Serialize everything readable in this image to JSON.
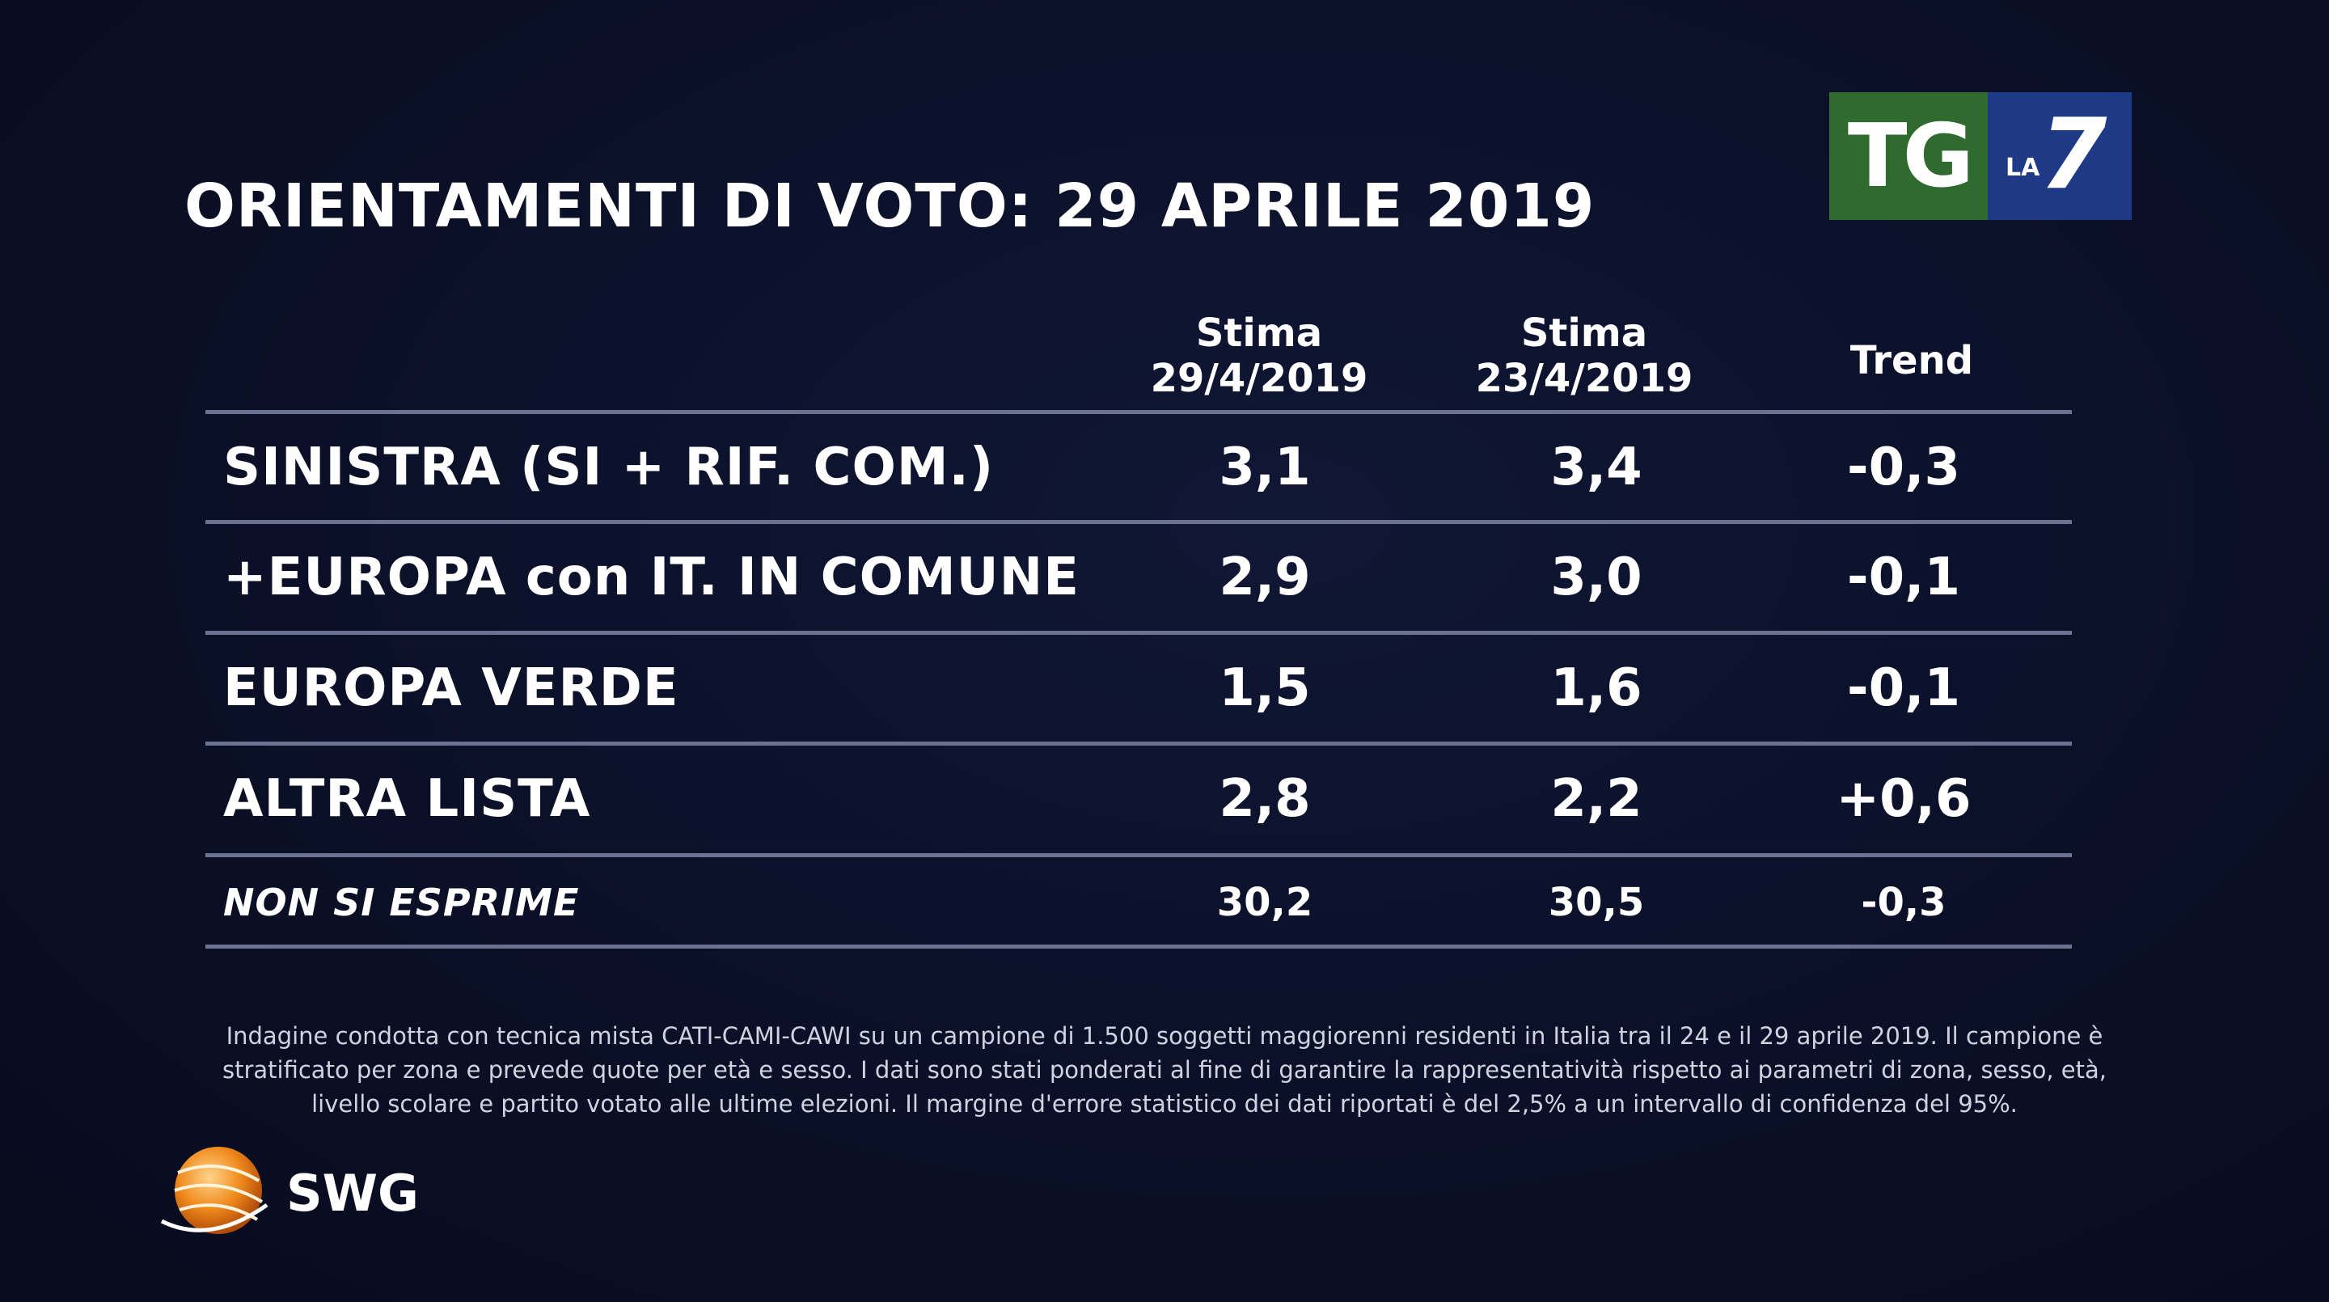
{
  "title": "ORIENTAMENTI DI VOTO: 29 APRILE 2019",
  "logo": {
    "tg": "TG",
    "la": "LA",
    "seven": "7"
  },
  "chart_data": {
    "type": "table",
    "columns": [
      {
        "line1": "Stima",
        "line2": "29/4/2019"
      },
      {
        "line1": "Stima",
        "line2": "23/4/2019"
      },
      {
        "line1": "Trend",
        "line2": ""
      }
    ],
    "rows": [
      {
        "label": "SINISTRA (SI + RIF. COM.)",
        "v1": "3,1",
        "v2": "3,4",
        "trend": "-0,3"
      },
      {
        "label": "+EUROPA con IT. IN COMUNE",
        "v1": "2,9",
        "v2": "3,0",
        "trend": "-0,1"
      },
      {
        "label": "EUROPA VERDE",
        "v1": "1,5",
        "v2": "1,6",
        "trend": "-0,1"
      },
      {
        "label": "ALTRA LISTA",
        "v1": "2,8",
        "v2": "2,2",
        "trend": "+0,6"
      },
      {
        "label": "NON SI ESPRIME",
        "v1": "30,2",
        "v2": "30,5",
        "trend": "-0,3"
      }
    ]
  },
  "footnote": "Indagine condotta con tecnica mista CATI-CAMI-CAWI su un campione di 1.500 soggetti maggiorenni residenti in Italia tra il 24 e il 29 aprile 2019. Il campione è stratificato per zona e prevede quote per età e sesso. I dati sono stati ponderati al fine di garantire la rappresentatività rispetto ai parametri di zona, sesso, età, livello scolare e partito votato alle ultime elezioni. Il margine d'errore statistico dei dati riportati è del 2,5% a un intervallo di confidenza del 95%.",
  "swg": {
    "name": "SWG"
  }
}
